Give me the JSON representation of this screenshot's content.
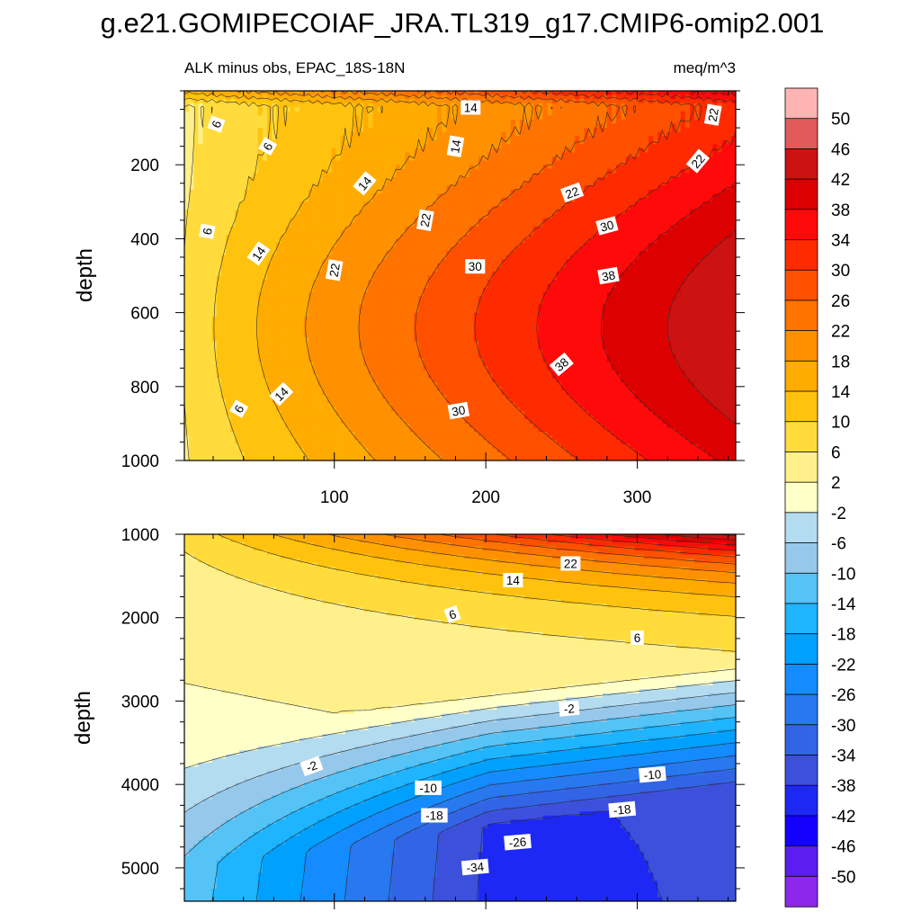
{
  "title": "g.e21.GOMIPECOIAF_JRA.TL319_g17.CMIP6-omip2.001",
  "subtitle_left": "ALK minus obs, EPAC_18S-18N",
  "subtitle_right": "meq/m^3",
  "chart_data": [
    {
      "type": "contour",
      "panel": "upper",
      "ylabel": "depth",
      "xlabel": "",
      "x_range": [
        1,
        365
      ],
      "y_range": [
        0,
        1000
      ],
      "y_reversed": true,
      "x_ticks": [
        100,
        200,
        300
      ],
      "y_ticks": [
        200,
        400,
        600,
        800,
        1000
      ],
      "contour_labels": [
        {
          "text": "6",
          "x": 22,
          "y": 90,
          "angle": -70
        },
        {
          "text": "6",
          "x": 56,
          "y": 150,
          "angle": -60
        },
        {
          "text": "6",
          "x": 16,
          "y": 380,
          "angle": -80
        },
        {
          "text": "6",
          "x": 37,
          "y": 860,
          "angle": -60
        },
        {
          "text": "14",
          "x": 190,
          "y": 45,
          "angle": 0
        },
        {
          "text": "14",
          "x": 180,
          "y": 150,
          "angle": -80
        },
        {
          "text": "14",
          "x": 120,
          "y": 250,
          "angle": -50
        },
        {
          "text": "14",
          "x": 50,
          "y": 440,
          "angle": -55
        },
        {
          "text": "14",
          "x": 65,
          "y": 820,
          "angle": -45
        },
        {
          "text": "22",
          "x": 350,
          "y": 65,
          "angle": -80
        },
        {
          "text": "22",
          "x": 340,
          "y": 190,
          "angle": -50
        },
        {
          "text": "22",
          "x": 257,
          "y": 275,
          "angle": -20
        },
        {
          "text": "22",
          "x": 160,
          "y": 350,
          "angle": -80
        },
        {
          "text": "22",
          "x": 100,
          "y": 485,
          "angle": -80
        },
        {
          "text": "30",
          "x": 280,
          "y": 365,
          "angle": -15
        },
        {
          "text": "30",
          "x": 193,
          "y": 475,
          "angle": 0
        },
        {
          "text": "30",
          "x": 182,
          "y": 865,
          "angle": -10
        },
        {
          "text": "38",
          "x": 281,
          "y": 500,
          "angle": -10
        },
        {
          "text": "38",
          "x": 250,
          "y": 740,
          "angle": -40
        }
      ]
    },
    {
      "type": "contour",
      "panel": "lower",
      "ylabel": "depth",
      "xlabel": "",
      "x_range": [
        1,
        365
      ],
      "y_range": [
        1000,
        5400
      ],
      "y_reversed": true,
      "x_ticks": [
        100,
        200,
        300
      ],
      "y_ticks": [
        1000,
        2000,
        3000,
        4000,
        5000
      ],
      "contour_labels": [
        {
          "text": "22",
          "x": 256,
          "y": 1350,
          "angle": 0
        },
        {
          "text": "14",
          "x": 218,
          "y": 1550,
          "angle": 0
        },
        {
          "text": "6",
          "x": 178,
          "y": 1960,
          "angle": -20
        },
        {
          "text": "6",
          "x": 300,
          "y": 2240,
          "angle": 0
        },
        {
          "text": "-2",
          "x": 255,
          "y": 3090,
          "angle": -5
        },
        {
          "text": "-2",
          "x": 85,
          "y": 3780,
          "angle": -20
        },
        {
          "text": "-10",
          "x": 162,
          "y": 4040,
          "angle": 0
        },
        {
          "text": "-10",
          "x": 310,
          "y": 3880,
          "angle": -5
        },
        {
          "text": "-18",
          "x": 166,
          "y": 4370,
          "angle": 0
        },
        {
          "text": "-18",
          "x": 290,
          "y": 4300,
          "angle": -5
        },
        {
          "text": "-26",
          "x": 221,
          "y": 4690,
          "angle": -5
        },
        {
          "text": "-34",
          "x": 193,
          "y": 4990,
          "angle": -5
        }
      ]
    }
  ],
  "colorbar": {
    "labels": [
      "50",
      "46",
      "42",
      "38",
      "34",
      "30",
      "26",
      "22",
      "18",
      "14",
      "10",
      "6",
      "2",
      "-2",
      "-6",
      "-10",
      "-14",
      "-18",
      "-22",
      "-26",
      "-30",
      "-34",
      "-38",
      "-42",
      "-46",
      "-50"
    ],
    "colors": [
      "#ffb4b4",
      "#e35a5a",
      "#cd1212",
      "#dc0000",
      "#ff0a0a",
      "#ff2b00",
      "#ff5000",
      "#ff7300",
      "#ff9100",
      "#ffab00",
      "#ffc30f",
      "#ffdc3c",
      "#fff08c",
      "#ffffc8",
      "#b4dcf0",
      "#96c8eb",
      "#55c3f5",
      "#1eb4ff",
      "#00a0ff",
      "#148cff",
      "#2878f0",
      "#3264e6",
      "#3c50dc",
      "#1e28f5",
      "#1400ff",
      "#5a1ef0",
      "#8c28eb"
    ]
  },
  "palette": {
    "level_values": [
      -50,
      -46,
      -42,
      -38,
      -34,
      -30,
      -26,
      -22,
      -18,
      -14,
      -10,
      -6,
      -2,
      2,
      6,
      10,
      14,
      18,
      22,
      26,
      30,
      34,
      38,
      42,
      46,
      50
    ]
  }
}
